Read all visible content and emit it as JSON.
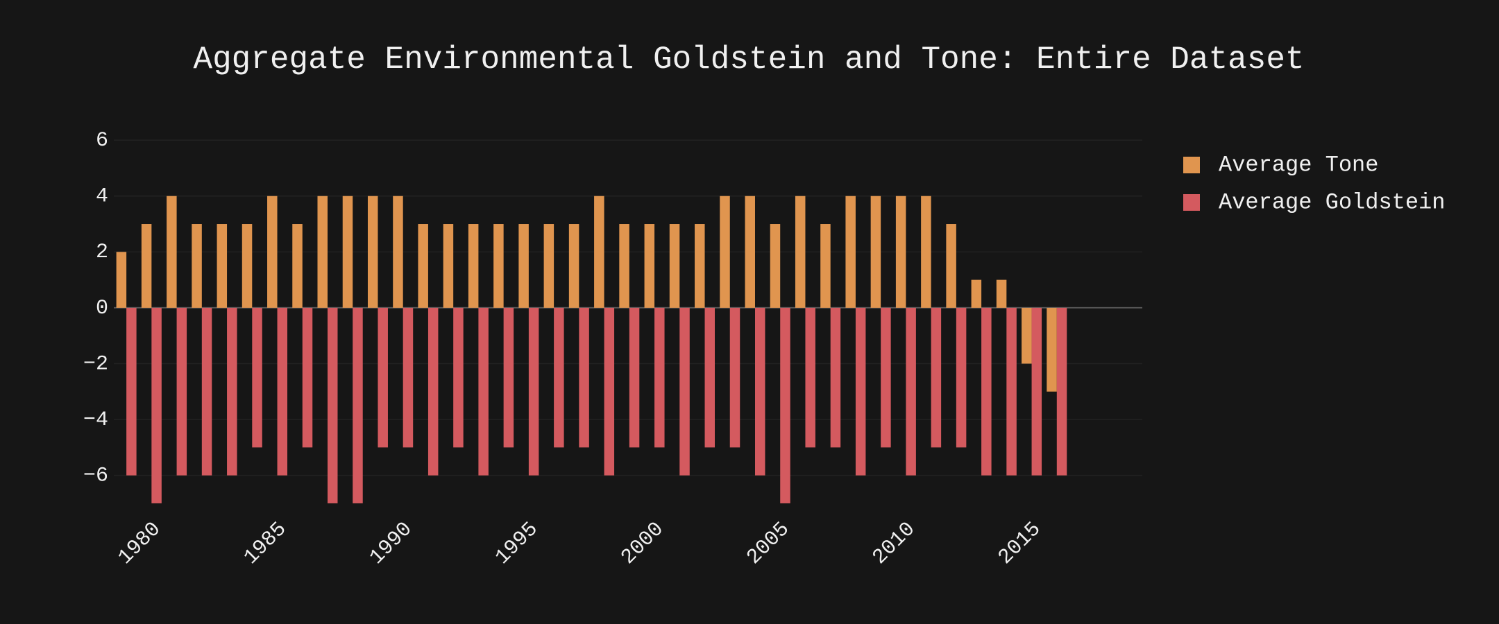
{
  "chart_data": {
    "type": "bar",
    "title": "Aggregate Environmental Goldstein and Tone: Entire Dataset",
    "x": [
      1979,
      1980,
      1981,
      1982,
      1983,
      1984,
      1985,
      1986,
      1987,
      1988,
      1989,
      1990,
      1991,
      1992,
      1993,
      1994,
      1995,
      1996,
      1997,
      1998,
      1999,
      2000,
      2001,
      2002,
      2003,
      2004,
      2005,
      2006,
      2007,
      2008,
      2009,
      2010,
      2011,
      2012,
      2013,
      2014,
      2015,
      2016
    ],
    "series": [
      {
        "name": "Average Tone",
        "color": "#e0954f",
        "values": [
          2,
          3,
          4,
          3,
          3,
          3,
          4,
          3,
          4,
          4,
          4,
          4,
          3,
          3,
          3,
          3,
          3,
          3,
          3,
          4,
          3,
          3,
          3,
          3,
          4,
          4,
          3,
          4,
          3,
          4,
          4,
          4,
          4,
          3,
          1,
          1,
          -2,
          -3
        ]
      },
      {
        "name": "Average Goldstein",
        "color": "#d45a5f",
        "values": [
          -6,
          -7,
          -6,
          -6,
          -6,
          -5,
          -6,
          -5,
          -7,
          -7,
          -5,
          -5,
          -6,
          -5,
          -6,
          -5,
          -6,
          -5,
          -5,
          -6,
          -5,
          -5,
          -6,
          -5,
          -5,
          -6,
          -7,
          -5,
          -5,
          -6,
          -5,
          -6,
          -5,
          -5,
          -6,
          -6,
          -6,
          -6
        ]
      }
    ],
    "xlim": [
      1978.5,
      2019.4
    ],
    "xticks": [
      1980,
      1985,
      1990,
      1995,
      2000,
      2005,
      2010,
      2015
    ],
    "ylim": [
      -7.2,
      6.5
    ],
    "yticks": [
      {
        "value": -6,
        "label": "−6"
      },
      {
        "value": -4,
        "label": "−4"
      },
      {
        "value": -2,
        "label": "−2"
      },
      0,
      2,
      4,
      6
    ],
    "grid": true
  }
}
